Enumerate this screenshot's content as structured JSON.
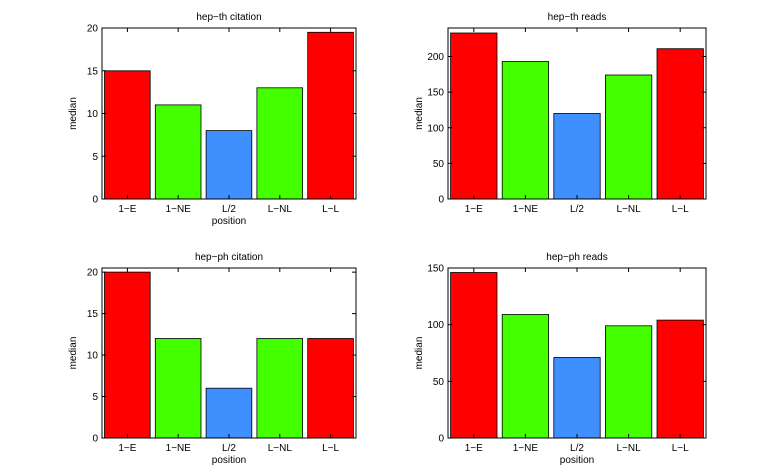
{
  "chart_data": [
    {
      "type": "bar",
      "title": "hep−th citation",
      "xlabel": "position",
      "ylabel": "median",
      "categories": [
        "1−E",
        "1−NE",
        "L/2",
        "L−NL",
        "L−L"
      ],
      "values": [
        15,
        11,
        8,
        13,
        19.5
      ],
      "colors": [
        "#ff0000",
        "#44ff00",
        "#3f8fff",
        "#44ff00",
        "#ff0000"
      ],
      "ylim": [
        0,
        20
      ],
      "yticks": [
        0,
        5,
        10,
        15,
        20
      ],
      "grid": false
    },
    {
      "type": "bar",
      "title": "hep−th reads",
      "xlabel": "",
      "ylabel": "median",
      "categories": [
        "1−E",
        "1−NE",
        "L/2",
        "L−NL",
        "L−L"
      ],
      "values": [
        233,
        193,
        120,
        174,
        211
      ],
      "colors": [
        "#ff0000",
        "#44ff00",
        "#3f8fff",
        "#44ff00",
        "#ff0000"
      ],
      "ylim": [
        0,
        240
      ],
      "yticks": [
        0,
        50,
        100,
        150,
        200
      ],
      "grid": false
    },
    {
      "type": "bar",
      "title": "hep−ph citation",
      "xlabel": "position",
      "ylabel": "median",
      "categories": [
        "1−E",
        "1−NE",
        "L/2",
        "L−NL",
        "L−L"
      ],
      "values": [
        20,
        12,
        6,
        12,
        12
      ],
      "colors": [
        "#ff0000",
        "#44ff00",
        "#3f8fff",
        "#44ff00",
        "#ff0000"
      ],
      "ylim": [
        0,
        20.5
      ],
      "yticks": [
        0,
        5,
        10,
        15,
        20
      ],
      "grid": false
    },
    {
      "type": "bar",
      "title": "hep−ph reads",
      "xlabel": "position",
      "ylabel": "median",
      "categories": [
        "1−E",
        "1−NE",
        "L/2",
        "L−NL",
        "L−L"
      ],
      "values": [
        146,
        109,
        71,
        99,
        104
      ],
      "colors": [
        "#ff0000",
        "#44ff00",
        "#3f8fff",
        "#44ff00",
        "#ff0000"
      ],
      "ylim": [
        0,
        150
      ],
      "yticks": [
        0,
        50,
        100,
        150
      ],
      "grid": false
    }
  ]
}
